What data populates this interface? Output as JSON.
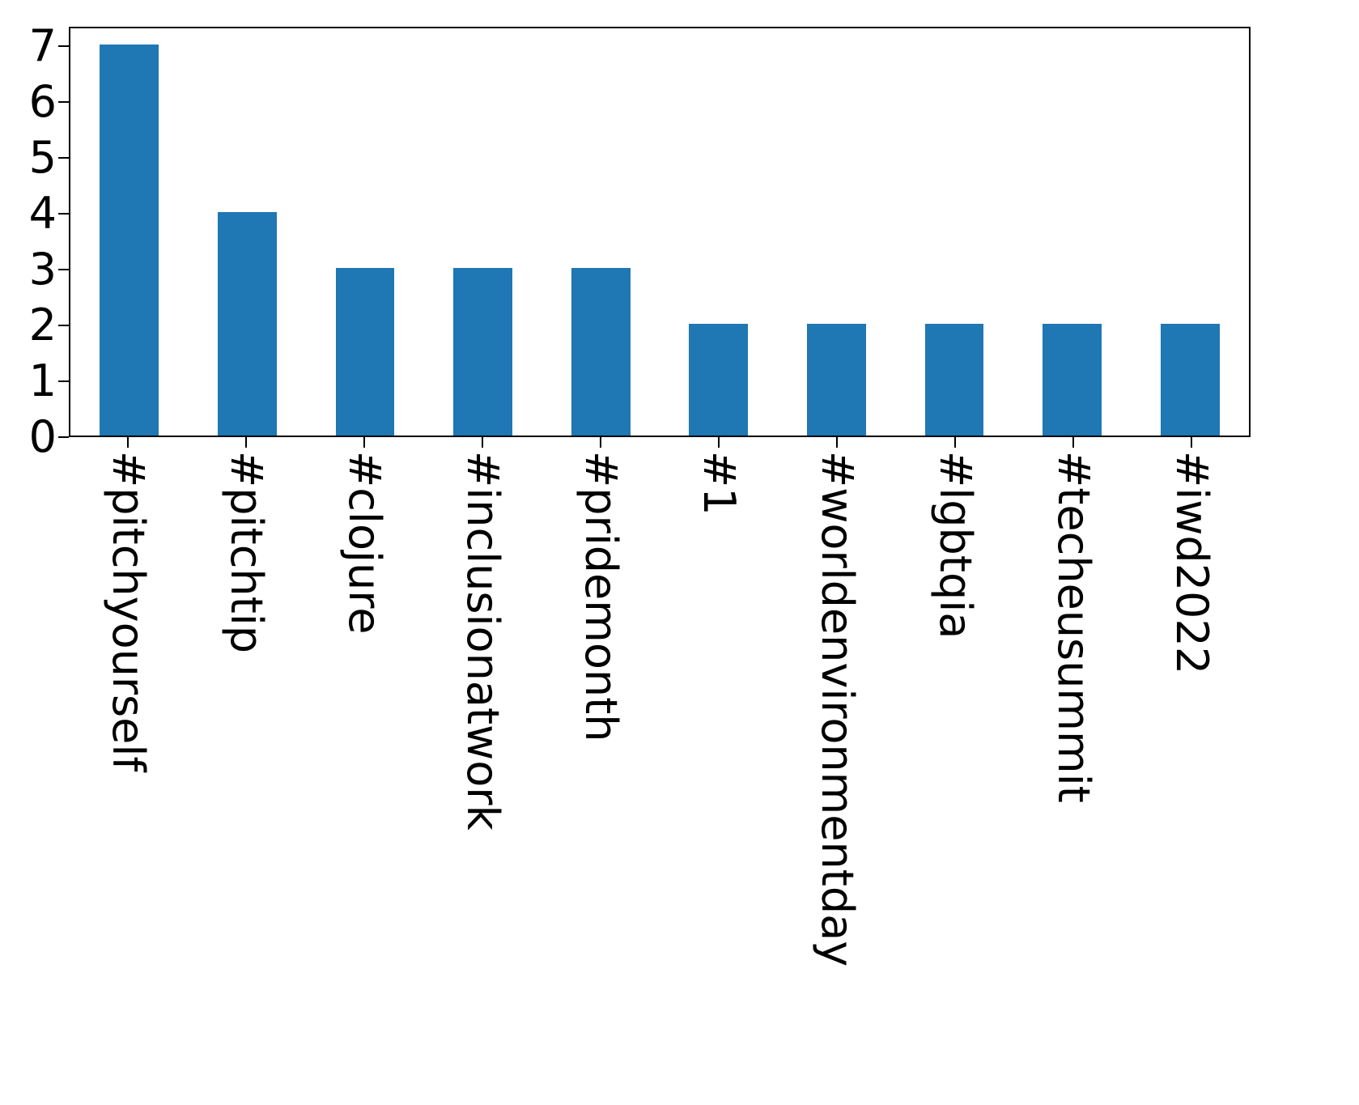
{
  "chart_data": {
    "type": "bar",
    "title": "",
    "xlabel": "",
    "ylabel": "",
    "categories": [
      "#pitchyourself",
      "#pitchtip",
      "#clojure",
      "#inclusionatwork",
      "#pridemonth",
      "#1",
      "#worldenvironmentday",
      "#lgbtqia",
      "#techeusummit",
      "#iwd2022"
    ],
    "values": [
      7,
      4,
      3,
      3,
      3,
      2,
      2,
      2,
      2,
      2
    ],
    "yticks": [
      0,
      1,
      2,
      3,
      4,
      5,
      6,
      7
    ],
    "ylim": [
      0,
      7.35
    ],
    "grid": false,
    "legend": null,
    "bar_color": "#1f77b4",
    "axis_color": "#000000",
    "background_color": "#ffffff",
    "x_tick_rotation_degrees": 90
  }
}
